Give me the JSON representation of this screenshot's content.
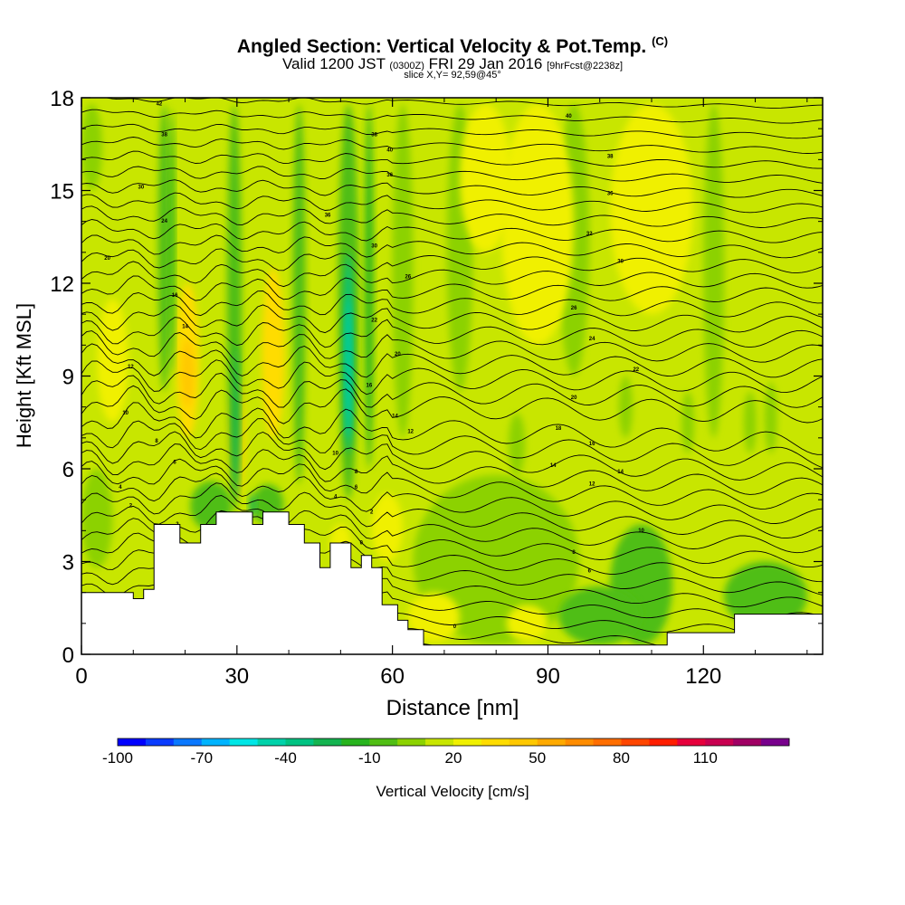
{
  "header": {
    "title": "Angled Section: Vertical Velocity & Pot.Temp.",
    "title_suffix": "(C)",
    "valid_prefix": "Valid 1200 JST",
    "valid_utc": "(0300Z)",
    "valid_date": "FRI 29 Jan 2016",
    "forecast": "[9hrFcst@2238z]",
    "slice": "slice X,Y= 92,59@45°"
  },
  "chart_data": {
    "type": "heatmap",
    "xlabel": "Distance [nm]",
    "ylabel": "Height [Kft MSL]",
    "xlim": [
      0,
      143
    ],
    "ylim": [
      0,
      18
    ],
    "x_ticks": [
      0,
      30,
      60,
      90,
      120
    ],
    "y_ticks": [
      0,
      3,
      6,
      9,
      12,
      15,
      18
    ],
    "background_w": 12,
    "colorbar": {
      "label": "Vertical Velocity [cm/s]",
      "min": -100,
      "max": 140,
      "step": 10,
      "tick_labels": [
        -100,
        -70,
        -40,
        -10,
        20,
        50,
        80,
        110
      ],
      "colors": [
        "#0000ff",
        "#0a3cff",
        "#0a78ff",
        "#00b4ff",
        "#00e6e6",
        "#00d2aa",
        "#00c382",
        "#14b450",
        "#28b41e",
        "#50be14",
        "#8cd200",
        "#c8e600",
        "#f0f000",
        "#ffdc00",
        "#ffc800",
        "#ffaa00",
        "#ff8c00",
        "#ff6e00",
        "#ff4600",
        "#ff1e00",
        "#e6003c",
        "#c80050",
        "#a00064",
        "#78008c"
      ]
    },
    "terrain_kft": [
      [
        0,
        2
      ],
      [
        10,
        2
      ],
      [
        10,
        1.8
      ],
      [
        12,
        1.8
      ],
      [
        12,
        2.1
      ],
      [
        14,
        2.1
      ],
      [
        14,
        4.2
      ],
      [
        19,
        4.2
      ],
      [
        19,
        3.6
      ],
      [
        23,
        3.6
      ],
      [
        23,
        4.2
      ],
      [
        26,
        4.2
      ],
      [
        26,
        4.6
      ],
      [
        33,
        4.6
      ],
      [
        33,
        4.2
      ],
      [
        35,
        4.2
      ],
      [
        35,
        4.6
      ],
      [
        40,
        4.6
      ],
      [
        40,
        4.2
      ],
      [
        43,
        4.2
      ],
      [
        43,
        3.6
      ],
      [
        46,
        3.6
      ],
      [
        46,
        2.8
      ],
      [
        48,
        2.8
      ],
      [
        48,
        3.6
      ],
      [
        52,
        3.6
      ],
      [
        52,
        2.8
      ],
      [
        54,
        2.8
      ],
      [
        54,
        3.2
      ],
      [
        56,
        3.2
      ],
      [
        56,
        2.8
      ],
      [
        58,
        2.8
      ],
      [
        58,
        1.6
      ],
      [
        61,
        1.6
      ],
      [
        61,
        1.1
      ],
      [
        63,
        1.1
      ],
      [
        63,
        0.8
      ],
      [
        66,
        0.8
      ],
      [
        66,
        0.3
      ],
      [
        113,
        0.3
      ],
      [
        113,
        0.7
      ],
      [
        126,
        0.7
      ],
      [
        126,
        1.3
      ],
      [
        143,
        1.3
      ],
      [
        143,
        0
      ],
      [
        0,
        0
      ]
    ],
    "updrafts": [
      {
        "x": 20.5,
        "ybot": 7,
        "ytop": 12,
        "w": 37,
        "rx": 2.2
      },
      {
        "x": 20.5,
        "ybot": 8,
        "ytop": 10.2,
        "w": 44,
        "rx": 1.2
      },
      {
        "x": 37,
        "ybot": 7,
        "ytop": 12.5,
        "w": 33,
        "rx": 2.2
      },
      {
        "x": 30,
        "ybot": 5,
        "ytop": 9,
        "w": 30,
        "rx": 1.6
      },
      {
        "x": 6,
        "ybot": 7.5,
        "ytop": 11.5,
        "w": 22,
        "rx": 3
      },
      {
        "x": 88,
        "ybot": 10,
        "ytop": 17.8,
        "w": 22,
        "rx": 7
      },
      {
        "x": 110,
        "ybot": 11,
        "ytop": 17.8,
        "w": 22,
        "rx": 8
      },
      {
        "x": 78,
        "ybot": 13,
        "ytop": 17.8,
        "w": 22,
        "rx": 5
      },
      {
        "x": 59,
        "ybot": 3,
        "ytop": 5.2,
        "w": 20,
        "rx": 3
      },
      {
        "x": 50,
        "ybot": 3,
        "ytop": 4.2,
        "w": 20,
        "rx": 2
      },
      {
        "x": 68,
        "ybot": 0.4,
        "ytop": 2,
        "w": 22,
        "rx": 5
      },
      {
        "x": 86,
        "ybot": 0.4,
        "ytop": 1.6,
        "w": 22,
        "rx": 4
      }
    ],
    "downdrafts": [
      {
        "x": 16,
        "ybot": 8.5,
        "ytop": 17.8,
        "w": -10,
        "rx": 1.2
      },
      {
        "x": 17.5,
        "ybot": 9,
        "ytop": 17.6,
        "w": -20,
        "rx": 0.5
      },
      {
        "x": 29.5,
        "ybot": 4.6,
        "ytop": 17.8,
        "w": -10,
        "rx": 1.4
      },
      {
        "x": 29.8,
        "ybot": 5,
        "ytop": 10,
        "w": -30,
        "rx": 0.6
      },
      {
        "x": 42,
        "ybot": 5.5,
        "ytop": 17.8,
        "w": -10,
        "rx": 1.2
      },
      {
        "x": 51.5,
        "ybot": 5,
        "ytop": 17.8,
        "w": -10,
        "rx": 2
      },
      {
        "x": 51.5,
        "ybot": 6.5,
        "ytop": 13,
        "w": -40,
        "rx": 0.9
      },
      {
        "x": 51.5,
        "ybot": 7,
        "ytop": 11.5,
        "w": -50,
        "rx": 0.5
      },
      {
        "x": 55.5,
        "ybot": 6,
        "ytop": 17.8,
        "w": -20,
        "rx": 0.8
      },
      {
        "x": 25,
        "ybot": 4,
        "ytop": 5.6,
        "w": -10,
        "rx": 4
      },
      {
        "x": 36,
        "ybot": 4.2,
        "ytop": 5.5,
        "w": -10,
        "rx": 3
      },
      {
        "x": 33,
        "ybot": 4.4,
        "ytop": 5.2,
        "w": -30,
        "rx": 0.6
      },
      {
        "x": 80,
        "ybot": 0.3,
        "ytop": 5.8,
        "w": 0,
        "rx": 16
      },
      {
        "x": 108,
        "ybot": 0.3,
        "ytop": 4.2,
        "w": -10,
        "rx": 6
      },
      {
        "x": 100,
        "ybot": 0.3,
        "ytop": 2.2,
        "w": -10,
        "rx": 8
      },
      {
        "x": 132,
        "ybot": 0.8,
        "ytop": 3,
        "w": -10,
        "rx": 8
      },
      {
        "x": 3,
        "ybot": 2.8,
        "ytop": 6,
        "w": 0,
        "rx": 3
      },
      {
        "x": 84,
        "ybot": 5.8,
        "ytop": 7.8,
        "w": 0,
        "rx": 1.6
      },
      {
        "x": 105,
        "ybot": 7,
        "ytop": 9,
        "w": 0,
        "rx": 1.3
      },
      {
        "x": 117,
        "ybot": 6.5,
        "ytop": 8.5,
        "w": 0,
        "rx": 1.2
      },
      {
        "x": 129,
        "ybot": 6.5,
        "ytop": 8.5,
        "w": 0,
        "rx": 1.2
      },
      {
        "x": 133,
        "ybot": 6.5,
        "ytop": 8.8,
        "w": 0,
        "rx": 1.2
      },
      {
        "x": 2,
        "ybot": 15,
        "ytop": 17.8,
        "w": 0,
        "rx": 2
      },
      {
        "x": 73,
        "ybot": 8.5,
        "ytop": 17.8,
        "w": 0,
        "rx": 2.5
      },
      {
        "x": 62,
        "ybot": 7,
        "ytop": 17.8,
        "w": 0,
        "rx": 2
      },
      {
        "x": 122,
        "ybot": 7,
        "ytop": 17.8,
        "w": 0,
        "rx": 2
      },
      {
        "x": 95,
        "ybot": 9,
        "ytop": 17.8,
        "w": 0,
        "rx": 3
      }
    ],
    "isentropes": {
      "count": 38,
      "lowest_kft": 0.6,
      "spacing_kft": 0.47
    },
    "contour_labels": [
      {
        "x": 15,
        "y": 17.8,
        "text": "42"
      },
      {
        "x": 16,
        "y": 16.8,
        "text": "38"
      },
      {
        "x": 11.5,
        "y": 15.1,
        "text": "30"
      },
      {
        "x": 16,
        "y": 14,
        "text": "24"
      },
      {
        "x": 5,
        "y": 12.8,
        "text": "20"
      },
      {
        "x": 18,
        "y": 11.6,
        "text": "16"
      },
      {
        "x": 20,
        "y": 10.6,
        "text": "14"
      },
      {
        "x": 9.5,
        "y": 9.3,
        "text": "12"
      },
      {
        "x": 8.5,
        "y": 7.8,
        "text": "10"
      },
      {
        "x": 14.5,
        "y": 6.9,
        "text": "8"
      },
      {
        "x": 18,
        "y": 6.2,
        "text": "6"
      },
      {
        "x": 7.5,
        "y": 5.4,
        "text": "4"
      },
      {
        "x": 9.5,
        "y": 4.8,
        "text": "2"
      },
      {
        "x": 18.5,
        "y": 4.2,
        "text": "2"
      },
      {
        "x": 47.5,
        "y": 14.2,
        "text": "36"
      },
      {
        "x": 56.5,
        "y": 16.8,
        "text": "38"
      },
      {
        "x": 59.5,
        "y": 16.3,
        "text": "40"
      },
      {
        "x": 59.5,
        "y": 15.5,
        "text": "36"
      },
      {
        "x": 56.5,
        "y": 13.2,
        "text": "30"
      },
      {
        "x": 63,
        "y": 12.2,
        "text": "26"
      },
      {
        "x": 56.5,
        "y": 10.8,
        "text": "22"
      },
      {
        "x": 61,
        "y": 9.7,
        "text": "20"
      },
      {
        "x": 55.5,
        "y": 8.7,
        "text": "16"
      },
      {
        "x": 60.5,
        "y": 7.7,
        "text": "14"
      },
      {
        "x": 63.5,
        "y": 7.2,
        "text": "12"
      },
      {
        "x": 49,
        "y": 6.5,
        "text": "10"
      },
      {
        "x": 53,
        "y": 5.9,
        "text": "8"
      },
      {
        "x": 53,
        "y": 5.4,
        "text": "6"
      },
      {
        "x": 49,
        "y": 5.1,
        "text": "4"
      },
      {
        "x": 56,
        "y": 4.6,
        "text": "2"
      },
      {
        "x": 54,
        "y": 3.6,
        "text": "0"
      },
      {
        "x": 94,
        "y": 17.4,
        "text": "40"
      },
      {
        "x": 102,
        "y": 16.1,
        "text": "38"
      },
      {
        "x": 102,
        "y": 14.9,
        "text": "36"
      },
      {
        "x": 98,
        "y": 13.6,
        "text": "32"
      },
      {
        "x": 104,
        "y": 12.7,
        "text": "30"
      },
      {
        "x": 95,
        "y": 11.2,
        "text": "26"
      },
      {
        "x": 98.5,
        "y": 10.2,
        "text": "24"
      },
      {
        "x": 107,
        "y": 9.2,
        "text": "22"
      },
      {
        "x": 95,
        "y": 8.3,
        "text": "20"
      },
      {
        "x": 92,
        "y": 7.3,
        "text": "18"
      },
      {
        "x": 98.5,
        "y": 6.8,
        "text": "16"
      },
      {
        "x": 91,
        "y": 6.1,
        "text": "14"
      },
      {
        "x": 104,
        "y": 5.9,
        "text": "14"
      },
      {
        "x": 98.5,
        "y": 5.5,
        "text": "12"
      },
      {
        "x": 108,
        "y": 4,
        "text": "10"
      },
      {
        "x": 95,
        "y": 3.3,
        "text": "8"
      },
      {
        "x": 98,
        "y": 2.7,
        "text": "6"
      },
      {
        "x": 72,
        "y": 0.9,
        "text": "0"
      }
    ]
  }
}
